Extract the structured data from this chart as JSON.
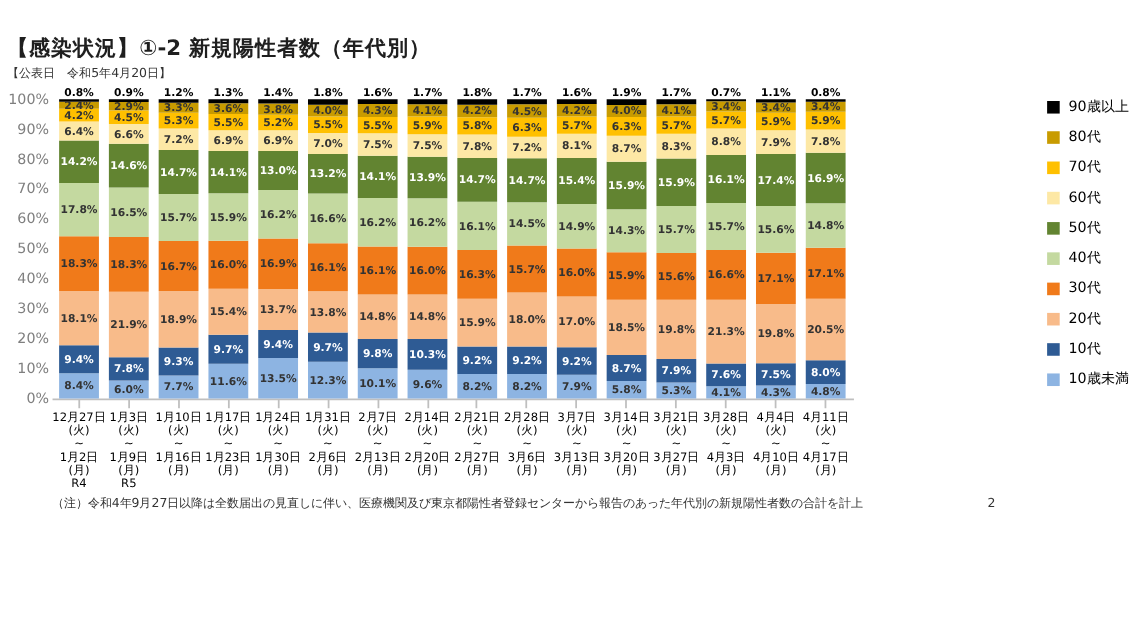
{
  "chart_data": {
    "type": "bar",
    "stacked": true,
    "title": "【感染状況】①-2 新規陽性者数（年代別）",
    "subtitle": "【公表日　令和5年4月20日】",
    "annotations": [
      "（注）令和4年9月27日以降は全数届出の見直しに伴い、医療機関及び東京都陽性者登録センターから報告のあった年代別の新規陽性者数の合計を計上",
      "2"
    ],
    "categories": [
      "12月27日\n(火)\n~\n1月2日\n(月)\nR4",
      "1月3日\n(火)\n~\n1月9日\n(月)\nR5",
      "1月10日\n(火)\n~\n1月16日\n(月)",
      "1月17日\n(火)\n~\n1月23日\n(月)",
      "1月24日\n(火)\n~\n1月30日\n(月)",
      "1月31日\n(火)\n~\n2月6日\n(月)",
      "2月7日\n(火)\n~\n2月13日\n(月)",
      "2月14日\n(火)\n~\n2月20日\n(月)",
      "2月21日\n(火)\n~\n2月27日\n(月)",
      "2月28日\n(火)\n~\n3月6日\n(月)",
      "3月7日\n(火)\n~\n3月13日\n(月)",
      "3月14日\n(火)\n~\n3月20日\n(月)",
      "3月21日\n(火)\n~\n3月27日\n(月)",
      "3月28日\n(火)\n~\n4月3日\n(月)",
      "4月4日\n(火)\n~\n4月10日\n(月)",
      "4月11日\n(火)\n~\n4月17日\n(月)"
    ],
    "series": [
      {
        "name": "10歳未満",
        "color": "#8db4e2",
        "values": [
          8.4,
          6.0,
          7.7,
          11.6,
          13.5,
          12.3,
          10.1,
          9.6,
          8.2,
          8.2,
          7.9,
          5.8,
          5.3,
          4.1,
          4.3,
          4.8
        ],
        "value_labels": [
          "8.4%",
          "6.0%",
          "7.7%",
          "11.6%",
          "13.5%",
          "12.3%",
          "10.1%",
          "9.6%",
          "8.2%",
          "8.2%",
          "7.9%",
          "5.8%",
          "5.3%",
          "4.1%",
          "4.3%",
          "4.8%"
        ]
      },
      {
        "name": "10代",
        "color": "#2e5b94",
        "values": [
          9.4,
          7.8,
          9.3,
          9.7,
          9.4,
          9.7,
          9.8,
          10.3,
          9.2,
          9.2,
          9.2,
          8.7,
          7.9,
          7.6,
          7.5,
          8.0
        ],
        "value_labels": [
          "9.4%",
          "7.8%",
          "9.3%",
          "9.7%",
          "9.4%",
          "9.7%",
          "9.8%",
          "10.3%",
          "9.2%",
          "9.2%",
          "9.2%",
          "8.7%",
          "7.9%",
          "7.6%",
          "7.5%",
          "8.0%"
        ]
      },
      {
        "name": "20代",
        "color": "#f8bb8a",
        "values": [
          18.1,
          21.9,
          18.9,
          15.4,
          13.7,
          13.8,
          14.8,
          14.8,
          15.9,
          18.0,
          17.0,
          18.5,
          19.8,
          21.3,
          19.8,
          20.5
        ],
        "value_labels": [
          "18.1%",
          "21.9%",
          "18.9%",
          "15.4%",
          "13.7%",
          "13.8%",
          "14.8%",
          "14.8%",
          "15.9%",
          "18.0%",
          "17.0%",
          "18.5%",
          "19.8%",
          "21.3%",
          "19.8%",
          "20.5%"
        ]
      },
      {
        "name": "30代",
        "color": "#f07a1a",
        "values": [
          18.3,
          18.3,
          16.7,
          16.0,
          16.9,
          16.1,
          16.1,
          16.0,
          16.3,
          15.7,
          16.0,
          15.9,
          15.6,
          16.6,
          17.1,
          17.1
        ],
        "value_labels": [
          "18.3%",
          "18.3%",
          "16.7%",
          "16.0%",
          "16.9%",
          "16.1%",
          "16.1%",
          "16.0%",
          "16.3%",
          "15.7%",
          "16.0%",
          "15.9%",
          "15.6%",
          "16.6%",
          "17.1%",
          "17.1%"
        ]
      },
      {
        "name": "40代",
        "color": "#c4d9a0",
        "values": [
          17.8,
          16.5,
          15.7,
          15.9,
          16.2,
          16.6,
          16.2,
          16.2,
          16.1,
          14.5,
          14.9,
          14.3,
          15.7,
          15.7,
          15.6,
          14.8
        ],
        "value_labels": [
          "17.8%",
          "16.5%",
          "15.7%",
          "15.9%",
          "16.2%",
          "16.6%",
          "16.2%",
          "16.2%",
          "16.1%",
          "14.5%",
          "14.9%",
          "14.3%",
          "15.7%",
          "15.7%",
          "15.6%",
          "14.8%"
        ]
      },
      {
        "name": "50代",
        "color": "#628431",
        "values": [
          14.2,
          14.6,
          14.7,
          14.1,
          13.0,
          13.2,
          14.1,
          13.9,
          14.7,
          14.7,
          15.4,
          15.9,
          15.9,
          16.1,
          17.4,
          16.9
        ],
        "value_labels": [
          "14.2%",
          "14.6%",
          "14.7%",
          "14.1%",
          "13.0%",
          "13.2%",
          "14.1%",
          "13.9%",
          "14.7%",
          "14.7%",
          "15.4%",
          "15.9%",
          "15.9%",
          "16.1%",
          "17.4%",
          "16.9%"
        ]
      },
      {
        "name": "60代",
        "color": "#fde8a5",
        "values": [
          6.4,
          6.6,
          7.2,
          6.9,
          6.9,
          7.0,
          7.5,
          7.5,
          7.8,
          7.2,
          8.1,
          8.7,
          8.3,
          8.8,
          7.9,
          7.8
        ],
        "value_labels": [
          "6.4%",
          "6.6%",
          "7.2%",
          "6.9%",
          "6.9%",
          "7.0%",
          "7.5%",
          "7.5%",
          "7.8%",
          "7.2%",
          "8.1%",
          "8.7%",
          "8.3%",
          "8.8%",
          "7.9%",
          "7.8%"
        ]
      },
      {
        "name": "70代",
        "color": "#ffc000",
        "values": [
          4.2,
          4.5,
          5.3,
          5.5,
          5.2,
          5.5,
          5.5,
          5.9,
          5.8,
          6.3,
          5.7,
          6.3,
          5.7,
          5.7,
          5.9,
          5.9
        ],
        "value_labels": [
          "4.2%",
          "4.5%",
          "5.3%",
          "5.5%",
          "5.2%",
          "5.5%",
          "5.5%",
          "5.9%",
          "5.8%",
          "6.3%",
          "5.7%",
          "6.3%",
          "5.7%",
          "5.7%",
          "5.9%",
          "5.9%"
        ]
      },
      {
        "name": "80代",
        "color": "#c89b00",
        "values": [
          2.4,
          2.9,
          3.3,
          3.6,
          3.8,
          4.0,
          4.3,
          4.1,
          4.2,
          4.5,
          4.2,
          4.0,
          4.1,
          3.4,
          3.4,
          3.4
        ],
        "value_labels": [
          "2.4%",
          "2.9%",
          "3.3%",
          "3.6%",
          "3.8%",
          "4.0%",
          "4.3%",
          "4.1%",
          "4.2%",
          "4.5%",
          "4.2%",
          "4.0%",
          "4.1%",
          "3.4%",
          "3.4%",
          "3.4%"
        ]
      },
      {
        "name": "90歳以上",
        "color": "#000000",
        "values": [
          0.8,
          0.9,
          1.2,
          1.3,
          1.4,
          1.8,
          1.6,
          1.7,
          1.8,
          1.7,
          1.6,
          1.9,
          1.7,
          0.7,
          1.1,
          0.8
        ],
        "value_labels": [
          "0.8%",
          "0.9%",
          "1.2%",
          "1.3%",
          "1.4%",
          "1.8%",
          "1.6%",
          "1.7%",
          "1.8%",
          "1.7%",
          "1.6%",
          "1.9%",
          "1.7%",
          "0.7%",
          "1.1%",
          "0.8%"
        ]
      }
    ],
    "ylim": [
      0,
      100
    ],
    "yticks": [
      {
        "value": 0,
        "label": "0%"
      },
      {
        "value": 10,
        "label": "10%"
      },
      {
        "value": 20,
        "label": "20%"
      },
      {
        "value": 30,
        "label": "30%"
      },
      {
        "value": 40,
        "label": "40%"
      },
      {
        "value": 50,
        "label": "50%"
      },
      {
        "value": 60,
        "label": "60%"
      },
      {
        "value": 70,
        "label": "70%"
      },
      {
        "value": 80,
        "label": "80%"
      },
      {
        "value": 90,
        "label": "90%"
      },
      {
        "value": 100,
        "label": "100%"
      }
    ],
    "grid": false,
    "legend": "right"
  }
}
